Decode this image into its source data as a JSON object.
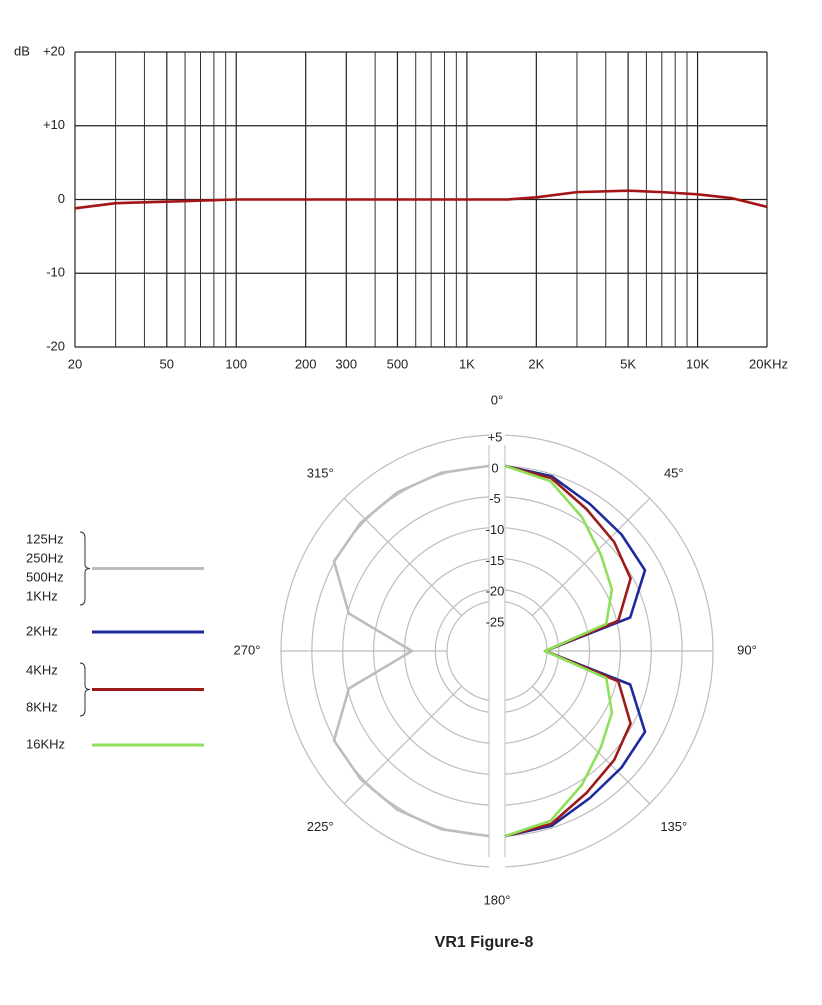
{
  "chart_data": [
    {
      "type": "line",
      "ylabel": "dB",
      "xscale": "log",
      "grid": true,
      "xlim": [
        20,
        20000
      ],
      "ylim": [
        -20,
        20
      ],
      "xticks": [
        20,
        50,
        100,
        200,
        300,
        500,
        {
          "value": 1000,
          "label": "1K"
        },
        {
          "value": 2000,
          "label": "2K"
        },
        {
          "value": 5000,
          "label": "5K"
        },
        {
          "value": 10000,
          "label": "10K"
        },
        {
          "value": 20000,
          "label": "20KHz"
        }
      ],
      "xminor": [
        30,
        40,
        60,
        70,
        80,
        90,
        400,
        600,
        700,
        800,
        900,
        3000,
        4000,
        6000,
        7000,
        8000,
        9000
      ],
      "yticks": [
        {
          "value": 20,
          "label": "+20"
        },
        {
          "value": 10,
          "label": "+10"
        },
        0,
        -10,
        -20
      ],
      "x": [
        20,
        30,
        50,
        100,
        200,
        500,
        1000,
        1500,
        2000,
        3000,
        5000,
        7000,
        10000,
        14000,
        20000
      ],
      "series": [
        {
          "color": "#a31515",
          "values": [
            -1.2,
            -0.5,
            -0.3,
            0,
            0,
            0,
            0,
            0,
            0.3,
            1.0,
            1.2,
            1.0,
            0.7,
            0.2,
            -1.0
          ]
        }
      ]
    },
    {
      "type": "polar",
      "title": "VR1 Figure-8",
      "rlim": [
        -30,
        5
      ],
      "rticks": [
        {
          "value": 5,
          "label": "+5"
        },
        0,
        -5,
        -10,
        -15,
        -20,
        -25
      ],
      "angle_ticks": [
        {
          "value": 0,
          "label": "0°"
        },
        {
          "value": 45,
          "label": "45°"
        },
        {
          "value": 90,
          "label": "90°"
        },
        {
          "value": 135,
          "label": "135°"
        },
        {
          "value": 180,
          "label": "180°"
        },
        {
          "value": 225,
          "label": "225°"
        },
        {
          "value": 270,
          "label": "270°"
        },
        {
          "value": 315,
          "label": "315°"
        }
      ],
      "series": [
        {
          "name": [
            "125Hz",
            "250Hz",
            "500Hz",
            "1KHz"
          ],
          "color": "#bdbdbd",
          "theta": [
            180,
            195,
            210,
            225,
            240,
            255,
            270,
            285,
            300,
            315,
            330,
            345,
            360
          ],
          "values": [
            0,
            -0.1,
            -0.3,
            -0.6,
            -1,
            -6.5,
            -17.5,
            -6.5,
            -1,
            -0.6,
            -0.3,
            -0.1,
            0
          ]
        },
        {
          "name": [
            "2KHz"
          ],
          "color": "#1c2a9c",
          "theta": [
            0,
            15,
            30,
            45,
            60,
            75,
            90,
            105,
            120,
            135,
            150,
            165,
            180
          ],
          "values": [
            0,
            -0.7,
            -2.5,
            -3.3,
            -3.8,
            -9,
            -23.5,
            -9,
            -3.8,
            -3.3,
            -2.5,
            -0.7,
            0
          ]
        },
        {
          "name": [
            "4KHz",
            "8KHz"
          ],
          "color": "#9c1a1a",
          "theta": [
            0,
            15,
            30,
            45,
            60,
            75,
            90,
            105,
            120,
            135,
            150,
            165,
            180
          ],
          "values": [
            0,
            -1,
            -3.5,
            -5,
            -6.5,
            -11,
            -23.5,
            -11,
            -6.5,
            -5,
            -3.5,
            -1,
            0
          ]
        },
        {
          "name": [
            "16KHz"
          ],
          "color": "#8ee05a",
          "theta": [
            0,
            15,
            30,
            45,
            60,
            75,
            90,
            105,
            120,
            135,
            150,
            165,
            180
          ],
          "values": [
            0,
            -1.5,
            -5,
            -8,
            -10,
            -13,
            -23.5,
            -13,
            -10,
            -8,
            -5,
            -1.5,
            0
          ]
        }
      ]
    }
  ]
}
